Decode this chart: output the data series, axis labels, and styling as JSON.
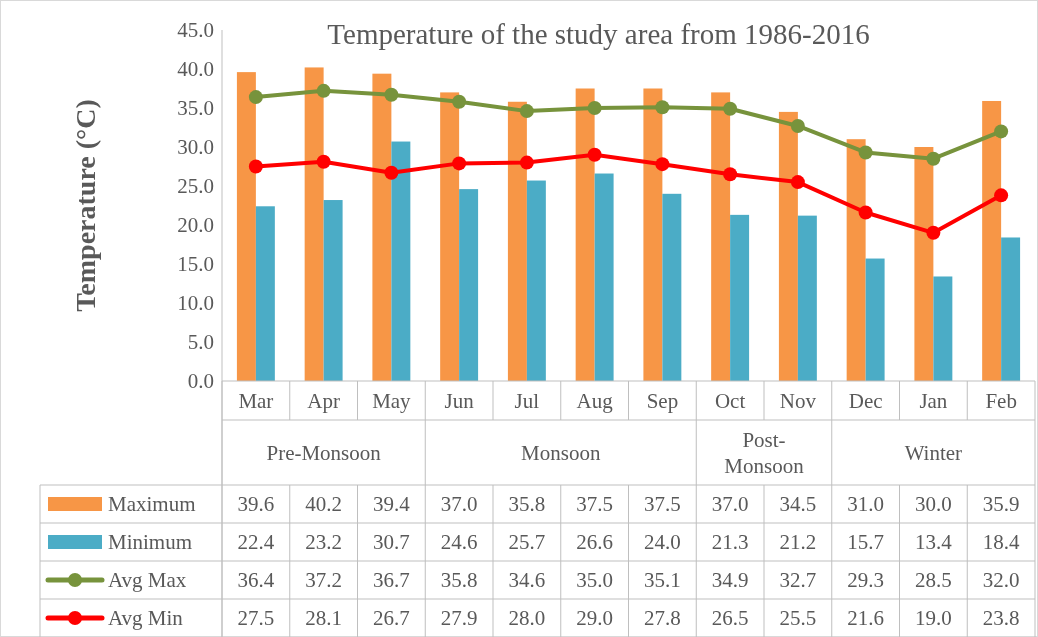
{
  "chart_data": {
    "type": "bar",
    "title": "Temperature of the study area from 1986-2016",
    "ylabel": "Temperature (°C)",
    "categories": [
      "Mar",
      "Apr",
      "May",
      "Jun",
      "Jul",
      "Aug",
      "Sep",
      "Oct",
      "Nov",
      "Dec",
      "Jan",
      "Feb"
    ],
    "annotations": [
      "Pre-Monsoon",
      "Monsoon",
      "Post-\nMonsoon",
      "Winter"
    ],
    "ylim": [
      0,
      45
    ],
    "yticks": [
      {
        "value": 0,
        "label": "0.0"
      },
      {
        "value": 5,
        "label": "5.0"
      },
      {
        "value": 10,
        "label": "10.0"
      },
      {
        "value": 15,
        "label": "15.0"
      },
      {
        "value": 20,
        "label": "20.0"
      },
      {
        "value": 25,
        "label": "25.0"
      },
      {
        "value": 30,
        "label": "30.0"
      },
      {
        "value": 35,
        "label": "35.0"
      },
      {
        "value": 40,
        "label": "40.0"
      },
      {
        "value": 45,
        "label": "45.0"
      }
    ],
    "legend": "bottom",
    "marker": "circle",
    "series": [
      {
        "name": "Maximum",
        "color": "#f79646",
        "values": [
          39.6,
          40.2,
          39.4,
          37.0,
          35.8,
          37.5,
          37.5,
          37.0,
          34.5,
          31.0,
          30.0,
          35.9
        ],
        "value_labels": [
          "39.6",
          "40.2",
          "39.4",
          "37.0",
          "35.8",
          "37.5",
          "37.5",
          "37.0",
          "34.5",
          "31.0",
          "30.0",
          "35.9"
        ]
      },
      {
        "name": "Minimum",
        "color": "#4bacc6",
        "values": [
          22.4,
          23.2,
          30.7,
          24.6,
          25.7,
          26.6,
          24.0,
          21.3,
          21.2,
          15.7,
          13.4,
          18.4
        ],
        "value_labels": [
          "22.4",
          "23.2",
          "30.7",
          "24.6",
          "25.7",
          "26.6",
          "24.0",
          "21.3",
          "21.2",
          "15.7",
          "13.4",
          "18.4"
        ]
      },
      {
        "name": "Avg Max",
        "type": "line",
        "color": "#77933c",
        "values": [
          36.4,
          37.2,
          36.7,
          35.8,
          34.6,
          35.0,
          35.1,
          34.9,
          32.7,
          29.3,
          28.5,
          32.0
        ],
        "value_labels": [
          "36.4",
          "37.2",
          "36.7",
          "35.8",
          "34.6",
          "35.0",
          "35.1",
          "34.9",
          "32.7",
          "29.3",
          "28.5",
          "32.0"
        ]
      },
      {
        "name": "Avg Min",
        "type": "line",
        "color": "#ff0000",
        "values": [
          27.5,
          28.1,
          26.7,
          27.9,
          28.0,
          29.0,
          27.8,
          26.5,
          25.5,
          21.6,
          19.0,
          23.8
        ],
        "value_labels": [
          "27.5",
          "28.1",
          "26.7",
          "27.9",
          "28.0",
          "29.0",
          "27.8",
          "26.5",
          "25.5",
          "21.6",
          "19.0",
          "23.8"
        ]
      }
    ]
  }
}
